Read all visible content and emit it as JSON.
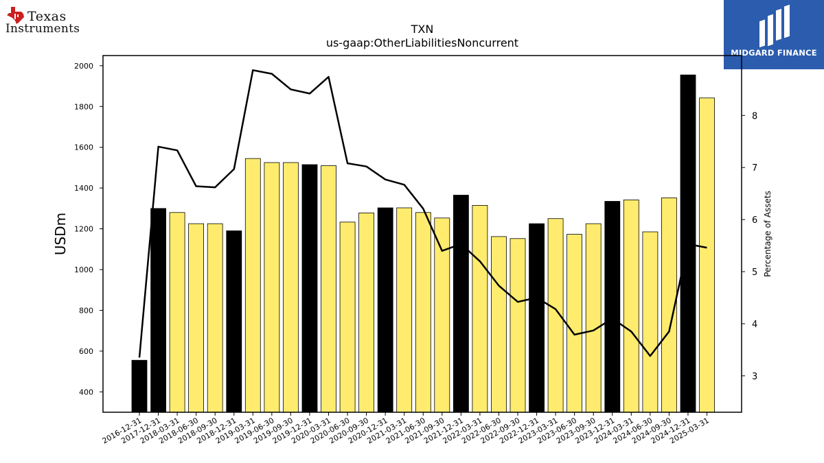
{
  "logos": {
    "left_brand_line1": "Texas",
    "left_brand_line2": "Instruments",
    "right_brand_text": "MIDGARD FINANCE"
  },
  "chart_data": {
    "type": "bar",
    "title": "TXN",
    "subtitle": "us-gaap:OtherLiabilitiesNoncurrent",
    "ylabel": "USDm",
    "y2label": "Percentage of Assets",
    "ylim": [
      300,
      2050
    ],
    "y2lim": [
      2.3,
      9.15
    ],
    "yticks": [
      400,
      600,
      800,
      1000,
      1200,
      1400,
      1600,
      1800,
      2000
    ],
    "y2ticks": [
      3,
      4,
      5,
      6,
      7,
      8
    ],
    "colors": {
      "annual_bar": "#000000",
      "quarter_bar": "#ffec6e",
      "line": "#000000"
    },
    "categories": [
      "2016-12-31",
      "2017-12-31",
      "2018-03-31",
      "2018-06-30",
      "2018-09-30",
      "2018-12-31",
      "2019-03-31",
      "2019-06-30",
      "2019-09-30",
      "2019-12-31",
      "2020-03-31",
      "2020-06-30",
      "2020-09-30",
      "2020-12-31",
      "2021-03-31",
      "2021-06-30",
      "2021-09-30",
      "2021-12-31",
      "2022-03-31",
      "2022-06-30",
      "2022-09-30",
      "2022-12-31",
      "2023-03-31",
      "2023-06-30",
      "2023-09-30",
      "2023-12-31",
      "2024-03-31",
      "2024-06-30",
      "2024-09-30",
      "2024-12-31",
      "2025-03-31"
    ],
    "series": [
      {
        "kind": "bar",
        "values": [
          555,
          1300,
          1280,
          1225,
          1225,
          1190,
          1545,
          1525,
          1525,
          1515,
          1510,
          1233,
          1278,
          1303,
          1303,
          1280,
          1253,
          1365,
          1315,
          1162,
          1152,
          1225,
          1250,
          1173,
          1225,
          1335,
          1342,
          1185,
          1352,
          1955,
          1842
        ],
        "annual": [
          true,
          true,
          false,
          false,
          false,
          true,
          false,
          false,
          false,
          true,
          false,
          false,
          false,
          true,
          false,
          false,
          false,
          true,
          false,
          false,
          false,
          true,
          false,
          false,
          false,
          true,
          false,
          false,
          false,
          true,
          false
        ]
      },
      {
        "kind": "line",
        "axis": "right",
        "values": [
          3.35,
          7.4,
          7.33,
          6.64,
          6.62,
          6.97,
          8.87,
          8.8,
          8.5,
          8.42,
          8.74,
          7.08,
          7.02,
          6.77,
          6.67,
          6.21,
          5.4,
          5.53,
          5.2,
          4.73,
          4.42,
          4.5,
          4.28,
          3.79,
          3.87,
          4.1,
          3.85,
          3.38,
          3.85,
          5.53,
          5.46
        ]
      }
    ],
    "legend": "none",
    "grid": false
  }
}
